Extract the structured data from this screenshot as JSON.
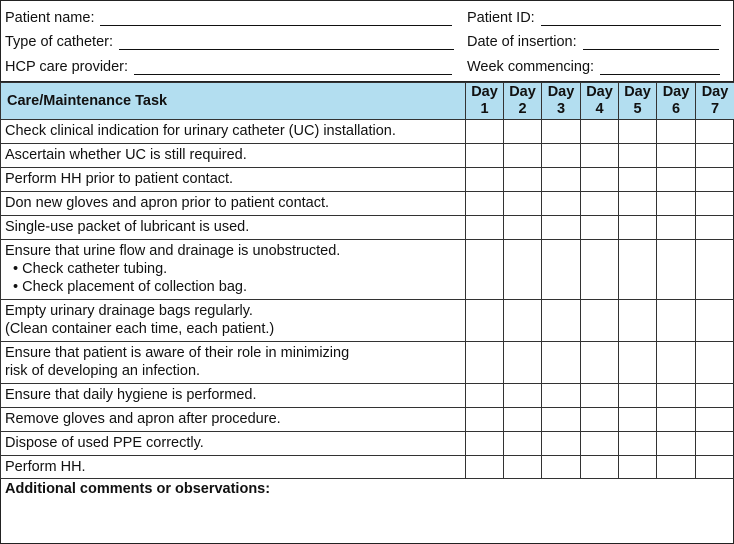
{
  "info": {
    "patient_name": "Patient name:",
    "patient_id": "Patient ID:",
    "catheter_type": "Type of catheter:",
    "date_insertion": "Date of insertion:",
    "hcp": "HCP care provider:",
    "week": "Week commencing:"
  },
  "header": {
    "task": "Care/Maintenance Task",
    "day_label": "Day",
    "days": [
      "1",
      "2",
      "3",
      "4",
      "5",
      "6",
      "7"
    ],
    "color": "#b3def0"
  },
  "tasks": [
    {
      "lines": [
        "Check clinical indication for urinary catheter (UC) installation."
      ]
    },
    {
      "lines": [
        "Ascertain whether UC is still required."
      ]
    },
    {
      "lines": [
        "Perform HH prior to patient contact."
      ]
    },
    {
      "lines": [
        "Don new gloves and apron prior to patient contact."
      ]
    },
    {
      "lines": [
        "Single-use packet of lubricant is used."
      ]
    },
    {
      "lines": [
        "Ensure that urine flow and drainage is unobstructed."
      ],
      "bullets": [
        "Check catheter tubing.",
        "Check placement of collection bag."
      ]
    },
    {
      "lines": [
        "Empty urinary drainage bags regularly.",
        "(Clean container each time, each patient.)"
      ]
    },
    {
      "lines": [
        "Ensure that patient is aware of their role in minimizing",
        "risk of developing an infection."
      ]
    },
    {
      "lines": [
        "Ensure that daily hygiene is performed."
      ]
    },
    {
      "lines": [
        "Remove gloves and apron after procedure."
      ]
    },
    {
      "lines": [
        "Dispose of used PPE correctly."
      ]
    },
    {
      "lines": [
        "Perform HH."
      ]
    }
  ],
  "comments_label": "Additional comments or observations:"
}
